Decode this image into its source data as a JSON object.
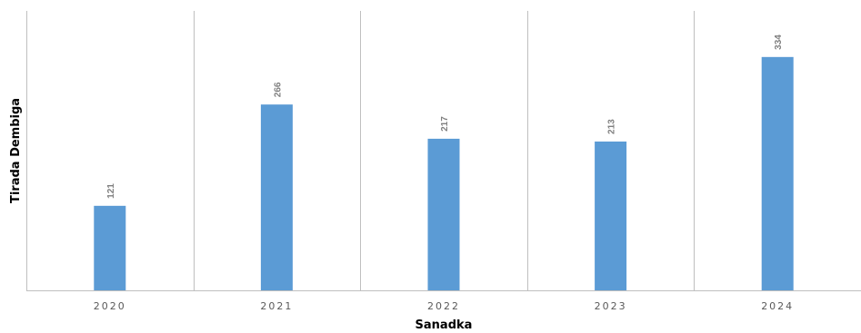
{
  "chart_data": {
    "type": "bar",
    "categories": [
      "2020",
      "2021",
      "2022",
      "2023",
      "2024"
    ],
    "values": [
      121,
      266,
      217,
      213,
      334
    ],
    "title": "",
    "xlabel": "Sanadka",
    "ylabel": "Tirada Dembiga",
    "ylim": [
      0,
      400
    ],
    "grid": "vertical category separators",
    "legend": "none",
    "data_labels": true,
    "bar_color": "#5B9BD5",
    "gridline_color": "#bfbfbf",
    "axis_line_color": "#bfbfbf"
  }
}
